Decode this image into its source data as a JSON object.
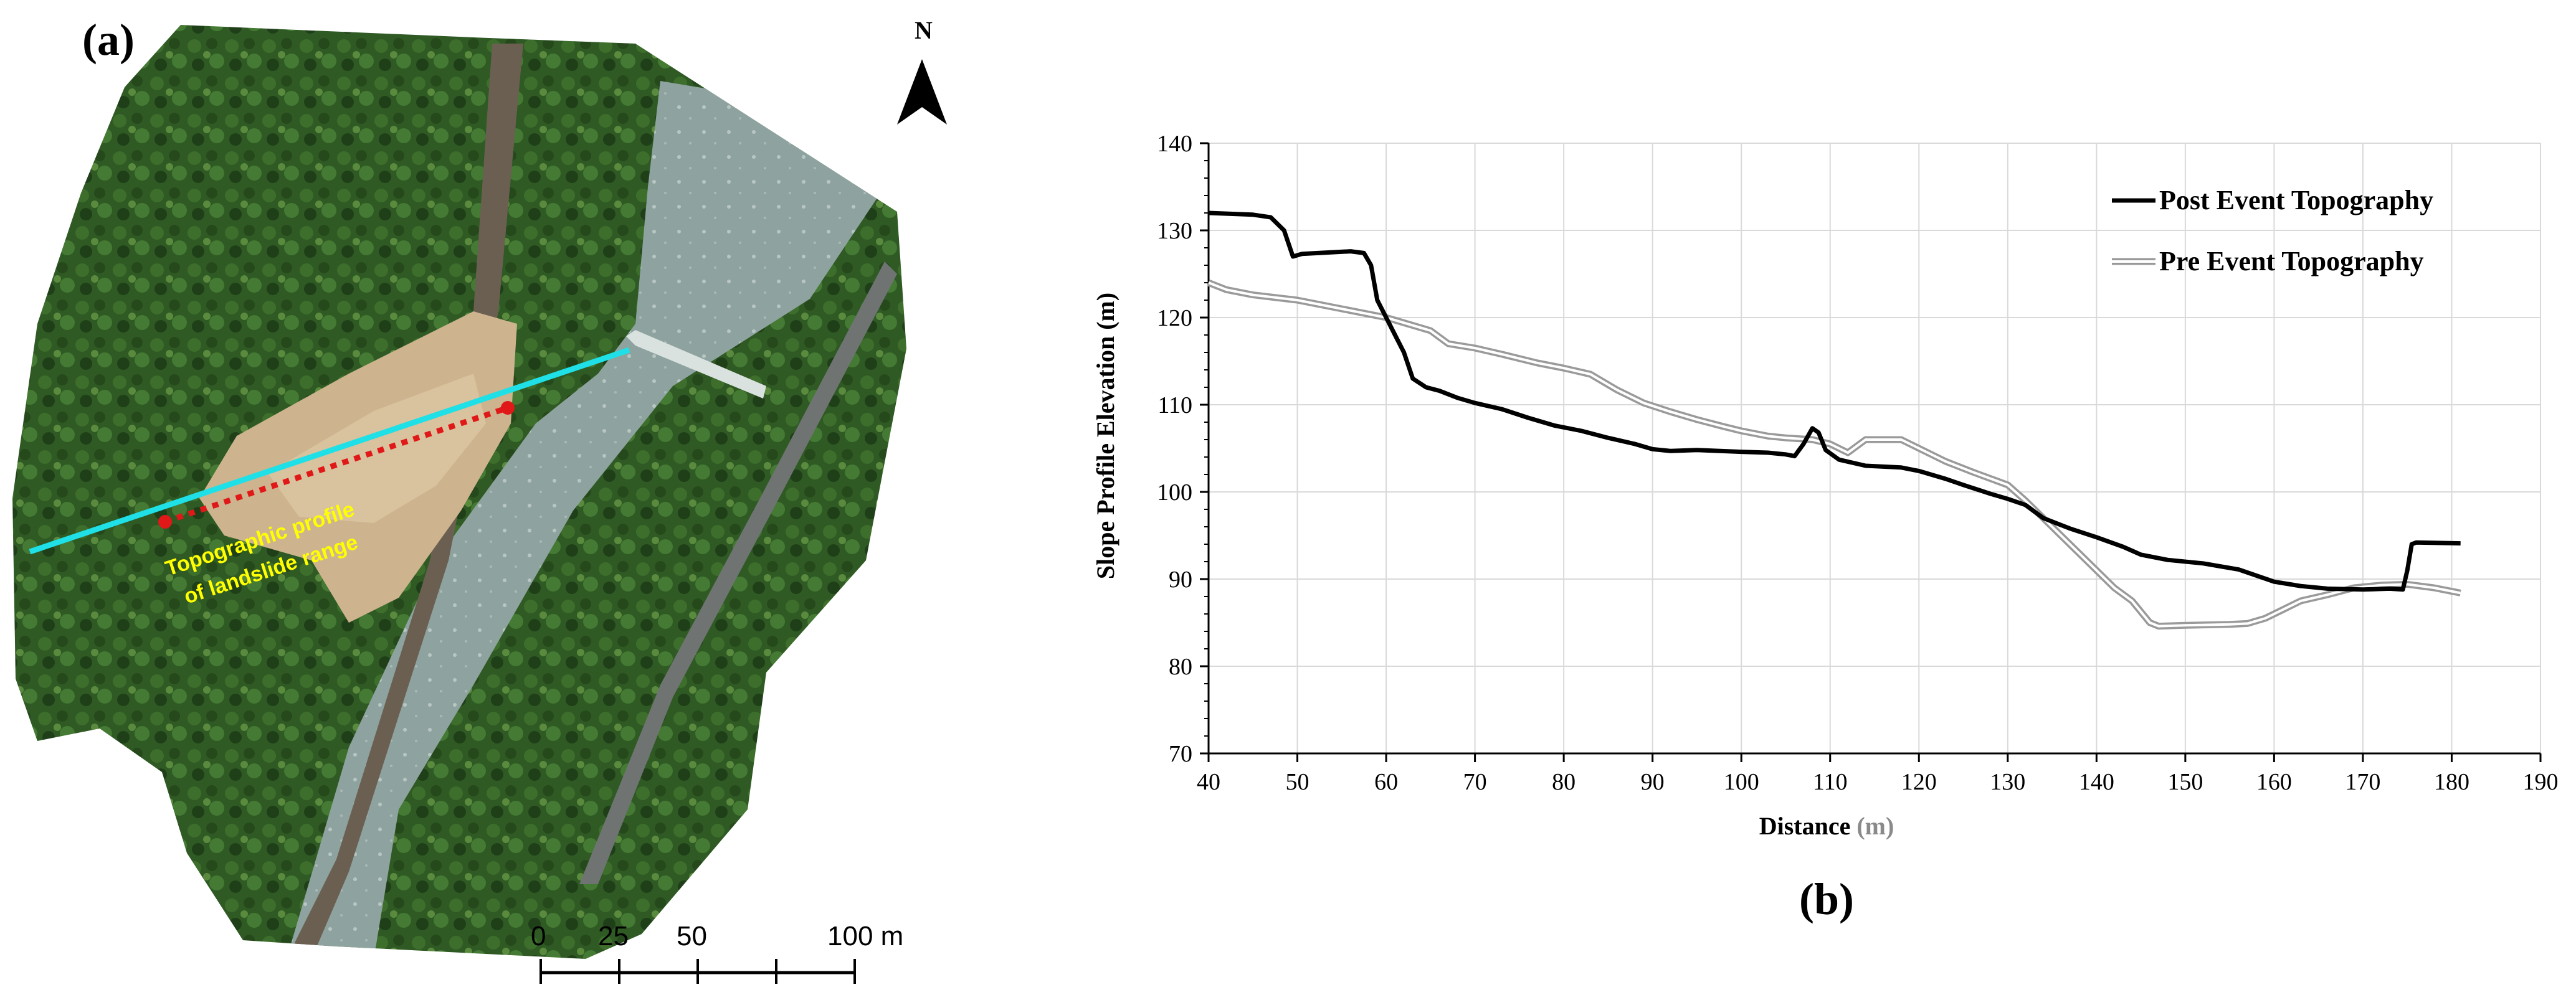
{
  "panel_a": {
    "label": "(a)",
    "north_label": "N",
    "annotation_line1": "Topographic profile",
    "annotation_line2": "of landslide range",
    "scale": {
      "ticks": [
        "0",
        "25",
        "50",
        "100 m"
      ]
    },
    "colors": {
      "profile_line": "#1fe0e6",
      "landslide_range": "#e01818",
      "annotation": "#ffff00"
    }
  },
  "panel_b": {
    "label": "(b)"
  },
  "chart_data": {
    "type": "line",
    "title": "",
    "xlabel": "Distance",
    "xlabel_unit": "(m)",
    "ylabel": "Slope Profile Elevation (m)",
    "xlim": [
      40,
      190
    ],
    "ylim": [
      70,
      140
    ],
    "xticks": [
      "40",
      "50",
      "60",
      "70",
      "80",
      "90",
      "100",
      "110",
      "120",
      "130",
      "140",
      "150",
      "160",
      "170",
      "180",
      "190"
    ],
    "yticks": [
      "70",
      "80",
      "90",
      "100",
      "110",
      "120",
      "130",
      "140"
    ],
    "grid": true,
    "legend_position": "top-right",
    "series": [
      {
        "name": "Post Event Topography",
        "color": "#000000",
        "style": "solid",
        "points": [
          [
            40,
            132
          ],
          [
            45,
            131.8
          ],
          [
            47,
            131.5
          ],
          [
            48.5,
            130
          ],
          [
            49.5,
            127
          ],
          [
            50.5,
            127.3
          ],
          [
            56,
            127.6
          ],
          [
            57.5,
            127.4
          ],
          [
            58.3,
            126
          ],
          [
            59,
            122
          ],
          [
            60,
            120
          ],
          [
            61,
            118
          ],
          [
            62,
            116
          ],
          [
            63,
            113
          ],
          [
            64.5,
            112
          ],
          [
            66,
            111.6
          ],
          [
            68,
            110.8
          ],
          [
            70,
            110.2
          ],
          [
            73,
            109.5
          ],
          [
            76,
            108.5
          ],
          [
            79,
            107.6
          ],
          [
            82,
            107
          ],
          [
            85,
            106.2
          ],
          [
            88,
            105.5
          ],
          [
            90,
            104.9
          ],
          [
            92,
            104.7
          ],
          [
            95,
            104.8
          ],
          [
            100,
            104.6
          ],
          [
            103,
            104.5
          ],
          [
            105,
            104.3
          ],
          [
            106,
            104.1
          ],
          [
            107,
            105.5
          ],
          [
            108,
            107.3
          ],
          [
            108.7,
            106.8
          ],
          [
            109.5,
            104.8
          ],
          [
            111,
            103.7
          ],
          [
            114,
            103
          ],
          [
            118,
            102.8
          ],
          [
            120,
            102.4
          ],
          [
            123,
            101.5
          ],
          [
            125,
            100.8
          ],
          [
            128,
            99.8
          ],
          [
            130,
            99.2
          ],
          [
            132,
            98.5
          ],
          [
            134,
            97
          ],
          [
            137,
            95.8
          ],
          [
            140,
            94.8
          ],
          [
            143,
            93.7
          ],
          [
            145,
            92.8
          ],
          [
            148,
            92.2
          ],
          [
            152,
            91.8
          ],
          [
            156,
            91.1
          ],
          [
            160,
            89.7
          ],
          [
            163,
            89.2
          ],
          [
            166,
            88.9
          ],
          [
            170,
            88.8
          ],
          [
            173,
            88.9
          ],
          [
            174.5,
            88.8
          ],
          [
            175,
            91
          ],
          [
            175.5,
            94
          ],
          [
            176,
            94.2
          ],
          [
            181,
            94.1
          ]
        ]
      },
      {
        "name": "Pre Event Topography",
        "color": "#9a9a9a",
        "style": "double",
        "points": [
          [
            40,
            124
          ],
          [
            42,
            123.2
          ],
          [
            45,
            122.6
          ],
          [
            50,
            122
          ],
          [
            55,
            121
          ],
          [
            60,
            120
          ],
          [
            65,
            118.5
          ],
          [
            67,
            117
          ],
          [
            70,
            116.5
          ],
          [
            73,
            115.8
          ],
          [
            77,
            114.8
          ],
          [
            80,
            114.2
          ],
          [
            83,
            113.5
          ],
          [
            86,
            111.7
          ],
          [
            89,
            110.2
          ],
          [
            92,
            109.2
          ],
          [
            95,
            108.3
          ],
          [
            98,
            107.5
          ],
          [
            100,
            107
          ],
          [
            103,
            106.4
          ],
          [
            105,
            106.2
          ],
          [
            108,
            106
          ],
          [
            110,
            105.5
          ],
          [
            112,
            104.5
          ],
          [
            114,
            106
          ],
          [
            118,
            106
          ],
          [
            120,
            105
          ],
          [
            123,
            103.5
          ],
          [
            126,
            102.3
          ],
          [
            130,
            100.8
          ],
          [
            132,
            99
          ],
          [
            134,
            97
          ],
          [
            136,
            95
          ],
          [
            138,
            93
          ],
          [
            140,
            91
          ],
          [
            142,
            89
          ],
          [
            144,
            87.5
          ],
          [
            146,
            85
          ],
          [
            147,
            84.6
          ],
          [
            150,
            84.7
          ],
          [
            155,
            84.8
          ],
          [
            157,
            84.9
          ],
          [
            159,
            85.5
          ],
          [
            161,
            86.5
          ],
          [
            163,
            87.5
          ],
          [
            166,
            88.2
          ],
          [
            169,
            89
          ],
          [
            172,
            89.3
          ],
          [
            175,
            89.4
          ],
          [
            178,
            89
          ],
          [
            181,
            88.4
          ]
        ]
      }
    ]
  }
}
